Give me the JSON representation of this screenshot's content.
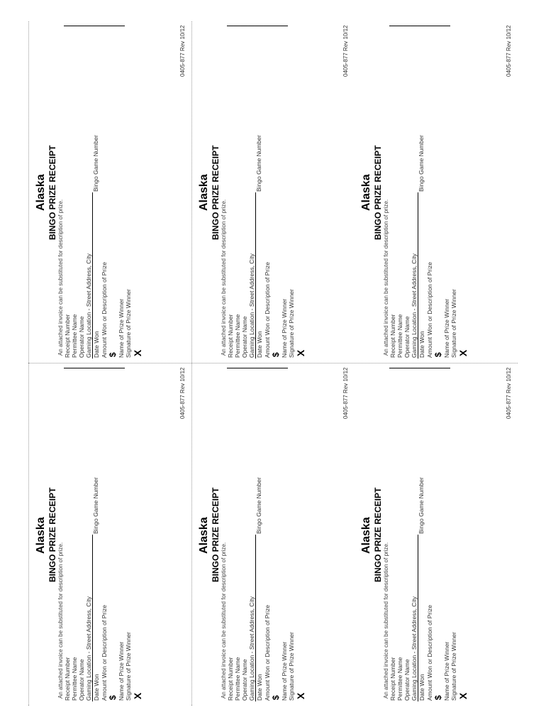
{
  "state": "Alaska",
  "title": "BINGO PRIZE RECEIPT",
  "note": "An attached invoice can be substituted for description of prize.",
  "fields": {
    "receipt_number": "Receipt Number",
    "permittee_name": "Permittee Name",
    "operator_name": "Operator Name",
    "gaming_location": "Gaming Location - Street Address, City",
    "date_won": "Date Won",
    "bingo_game_number": "Bingo Game Number",
    "amount_won": "Amount Won or Description of Prize",
    "name_winner": "Name of Prize Winner",
    "signature": "Signature of Prize Winner"
  },
  "dollar": "$",
  "x": "X",
  "footer": "0405-877 Rev 10/12"
}
